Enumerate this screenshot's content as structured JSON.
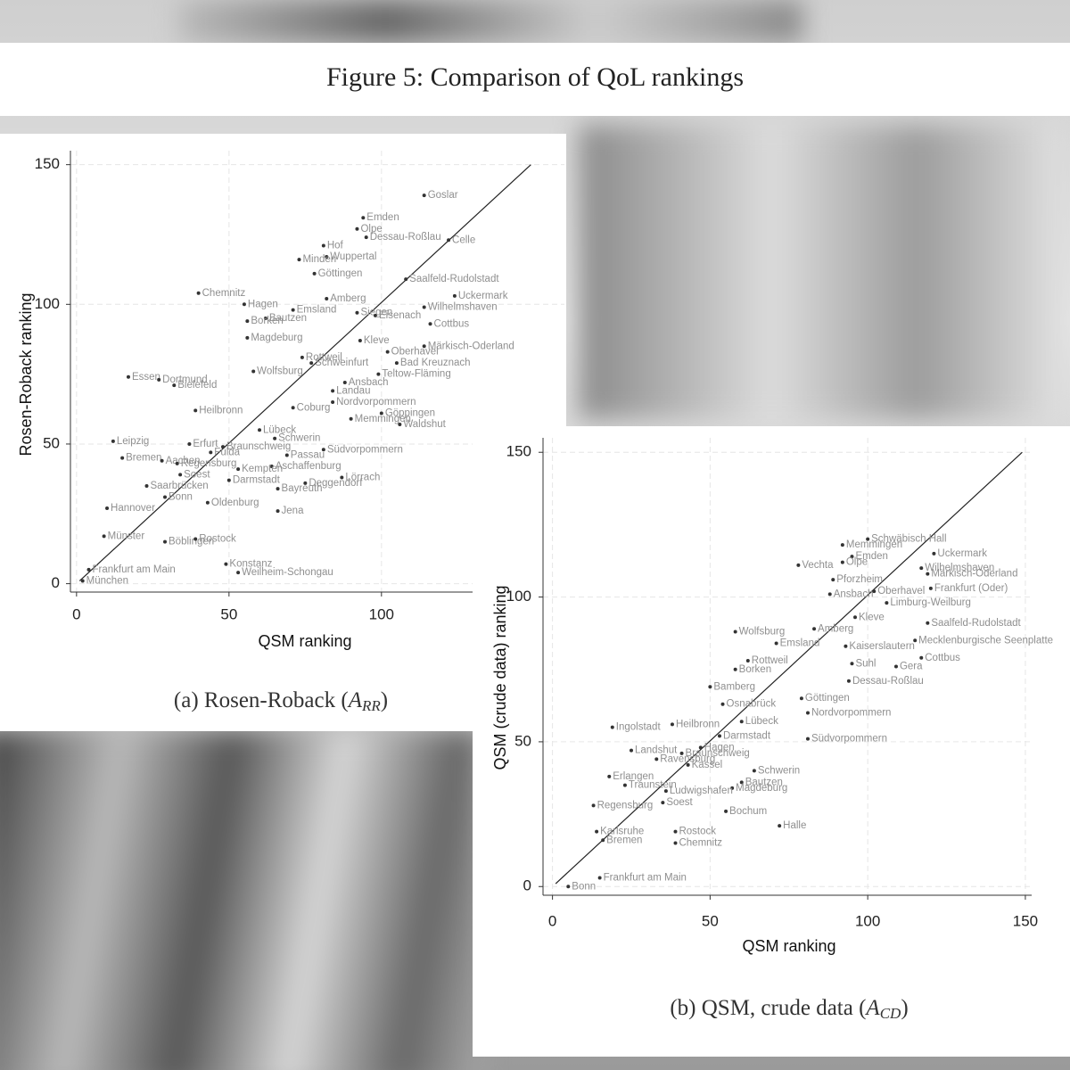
{
  "title": "Figure 5: Comparison of QoL rankings",
  "chart_data": [
    {
      "type": "scatter",
      "x_label": "QSM ranking",
      "y_label": "Rosen-Roback ranking",
      "caption": {
        "text": "(a) Rosen-Roback (",
        "symbol": "A",
        "subscript": "RR",
        "close": ")"
      },
      "xlim": [
        -2,
        160
      ],
      "ylim": [
        -3,
        155
      ],
      "xticks": [
        0,
        50,
        100
      ],
      "yticks": [
        0,
        50,
        100,
        150
      ],
      "grid": true,
      "color": "#333333",
      "label_color": "#8f8f8f",
      "reference_line": {
        "x": [
          1,
          149
        ],
        "y": [
          1,
          150
        ]
      },
      "labels": [
        "Chemnitz",
        "Hagen",
        "Emden",
        "Olpe",
        "Hof",
        "Wuppertal",
        "Minden",
        "Göttingen",
        "Amberg",
        "Emsland",
        "Eisenach",
        "Cottbus",
        "Magdeburg",
        "Essen",
        "Dortmund",
        "Bielefeld",
        "Wolfsburg",
        "Teltow-Fläming",
        "Ansbach",
        "Landau",
        "Nordvorpommern",
        "Göppingen",
        "Memmingen",
        "Waldshut",
        "Coburg",
        "Heilbronn",
        "Leipzig",
        "Bremen",
        "Lübeck",
        "Schwerin",
        "Südvorpommern",
        "Passau",
        "Aschaffenburg",
        "Lörrach",
        "Deggendorf",
        "Darmstadt",
        "Bayreuth",
        "Saarbrücken",
        "Jena",
        "Münster",
        "Böblingen",
        "Rostock",
        "Konstanz",
        "Weilheim-Schongau",
        "Frankfurt am Main",
        "München",
        "Goslar",
        "Dessau-Roßlau",
        "Wilhelmshaven",
        "Märkisch-Oderland",
        "Saalfeld-Rudolstadt",
        "Kempten",
        "Soest",
        "Fulda",
        "Braunschweig",
        "Oldenburg",
        "Bonn",
        "Hannover",
        "Erfurt",
        "Aachen",
        "Regensburg",
        "Bad Kreuznach",
        "Oberhavel",
        "Kleve",
        "Schweinfurt",
        "Rottweil",
        "Bautzen",
        "Borken",
        "Siegen",
        "Celle",
        "Uckermark"
      ],
      "x": [
        40,
        55,
        94,
        92,
        81,
        82,
        73,
        78,
        82,
        71,
        98,
        116,
        56,
        17,
        27,
        32,
        58,
        99,
        88,
        84,
        84,
        100,
        90,
        106,
        71,
        39,
        12,
        15,
        60,
        65,
        81,
        69,
        64,
        87,
        75,
        50,
        66,
        23,
        66,
        9,
        29,
        39,
        49,
        53,
        4,
        2,
        114,
        95,
        114,
        114,
        108,
        53,
        34,
        44,
        48,
        43,
        29,
        10,
        37,
        28,
        33,
        105,
        102,
        93,
        77,
        74,
        62,
        56,
        92,
        122,
        124
      ],
      "values": [
        104,
        100,
        131,
        127,
        121,
        117,
        116,
        111,
        102,
        98,
        96,
        93,
        88,
        74,
        73,
        71,
        76,
        75,
        72,
        69,
        65,
        61,
        59,
        57,
        63,
        62,
        51,
        45,
        55,
        52,
        48,
        46,
        42,
        38,
        36,
        37,
        34,
        35,
        26,
        17,
        15,
        16,
        7,
        4,
        5,
        1,
        139,
        124,
        99,
        85,
        109,
        41,
        39,
        47,
        49,
        29,
        31,
        27,
        50,
        44,
        43,
        79,
        83,
        87,
        79,
        81,
        95,
        94,
        97,
        123,
        103
      ]
    },
    {
      "type": "scatter",
      "x_label": "QSM ranking",
      "y_label": "QSM (crude data) ranking",
      "caption": {
        "text": "(b) QSM, crude data (",
        "symbol": "A",
        "subscript": "CD",
        "close": ")"
      },
      "xlim": [
        -3,
        152
      ],
      "ylim": [
        -3,
        155
      ],
      "xticks": [
        0,
        50,
        100,
        150
      ],
      "yticks": [
        0,
        50,
        100,
        150
      ],
      "grid": true,
      "color": "#333333",
      "label_color": "#8f8f8f",
      "reference_line": {
        "x": [
          1,
          149
        ],
        "y": [
          1,
          150
        ]
      },
      "labels": [
        "Memmingen",
        "Schwäbisch Hall",
        "Emden",
        "Olpe",
        "Uckermark",
        "Vechta",
        "Wilhelmshaven",
        "Märkisch-Oderland",
        "Frankfurt (Oder)",
        "Pforzheim",
        "Oberhavel",
        "Ansbach",
        "Limburg-Weilburg",
        "Kleve",
        "Saalfeld-Rudolstadt",
        "Mecklenburgische Seenplatte",
        "Wolfsburg",
        "Amberg",
        "Kaiserslautern",
        "Suhl",
        "Gera",
        "Cottbus",
        "Dessau-Roßlau",
        "Borken",
        "Rottweil",
        "Bamberg",
        "Göttingen",
        "Nordvorpommern",
        "Südvorpommern",
        "Ingolstadt",
        "Heilbronn",
        "Lübeck",
        "Landshut",
        "Ravensburg",
        "Schwerin",
        "Bautzen",
        "Magdeburg",
        "Erlangen",
        "Traunstein",
        "Ludwigshafen",
        "Regensburg",
        "Bochum",
        "Halle",
        "Chemnitz",
        "Rostock",
        "Karlsruhe",
        "Bremen",
        "Frankfurt am Main",
        "Bonn",
        "Hagen",
        "Braunschweig",
        "Emsland",
        "Darmstadt",
        "Kassel",
        "Soest",
        "Osnabrück"
      ],
      "x": [
        92,
        100,
        95,
        92,
        121,
        78,
        117,
        119,
        120,
        89,
        102,
        88,
        106,
        96,
        119,
        115,
        58,
        83,
        93,
        95,
        109,
        117,
        94,
        58,
        62,
        50,
        79,
        81,
        81,
        19,
        38,
        60,
        25,
        33,
        64,
        60,
        57,
        18,
        23,
        36,
        13,
        55,
        72,
        39,
        39,
        14,
        16,
        15,
        5,
        47,
        41,
        71,
        53,
        43,
        35,
        54
      ],
      "values": [
        118,
        120,
        114,
        112,
        115,
        111,
        110,
        108,
        103,
        106,
        102,
        101,
        98,
        93,
        91,
        85,
        88,
        89,
        83,
        77,
        76,
        79,
        71,
        75,
        78,
        69,
        65,
        60,
        51,
        55,
        56,
        57,
        47,
        44,
        40,
        36,
        34,
        38,
        35,
        33,
        28,
        26,
        21,
        15,
        19,
        19,
        16,
        3,
        0,
        48,
        46,
        84,
        52,
        42,
        29,
        63
      ]
    }
  ]
}
